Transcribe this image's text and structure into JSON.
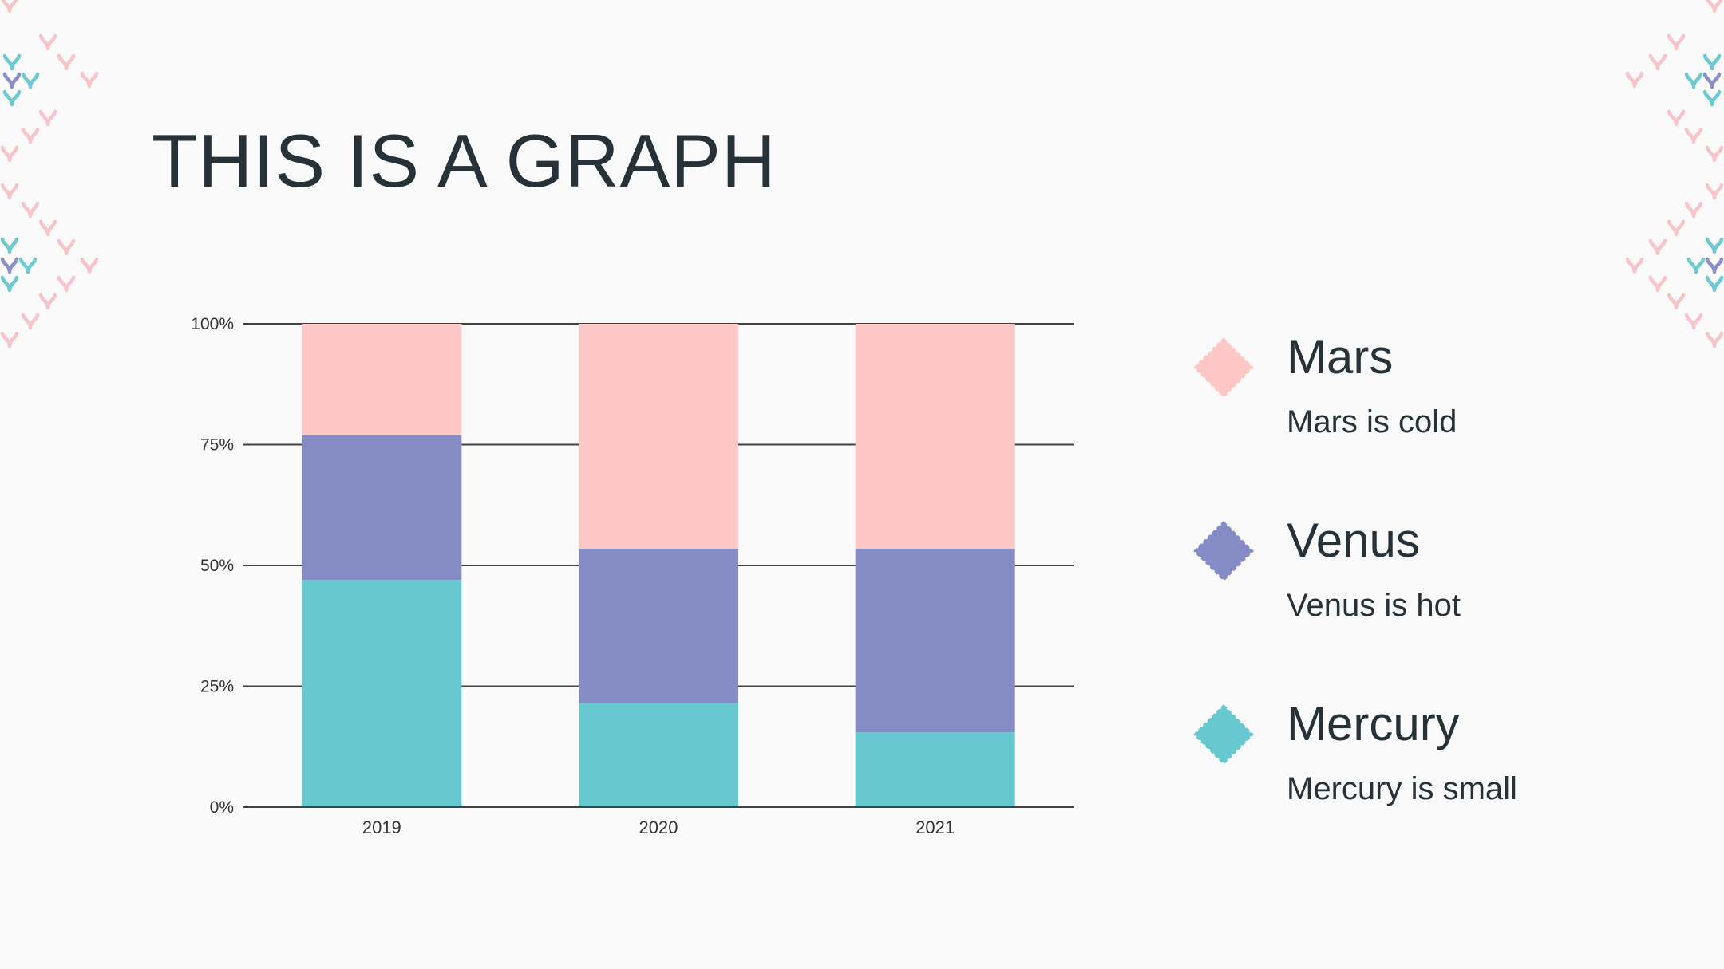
{
  "slide": {
    "title": "THIS IS A GRAPH"
  },
  "colors": {
    "background": "#fafafa",
    "text": "#263238",
    "mars": "#fdc7c6",
    "venus": "#858cc5",
    "mercury": "#67c8cf",
    "gridline": "#424242"
  },
  "chart_data": {
    "type": "bar",
    "stacked": true,
    "percent_stacked": true,
    "categories": [
      "2019",
      "2020",
      "2021"
    ],
    "series": [
      {
        "name": "Mercury",
        "values": [
          47,
          21.5,
          15.5
        ]
      },
      {
        "name": "Venus",
        "values": [
          30,
          32,
          38
        ]
      },
      {
        "name": "Mars",
        "values": [
          23,
          46.5,
          46.5
        ]
      }
    ],
    "ylim": [
      0,
      100
    ],
    "yticks": [
      "0%",
      "25%",
      "50%",
      "75%",
      "100%"
    ],
    "grid": true,
    "legend": "right"
  },
  "legend": {
    "items": [
      {
        "name": "Mars",
        "desc": "Mars is cold",
        "icon": "diamond-icon"
      },
      {
        "name": "Venus",
        "desc": "Venus is hot",
        "icon": "diamond-icon"
      },
      {
        "name": "Mercury",
        "desc": "Mercury is small",
        "icon": "diamond-icon"
      }
    ]
  }
}
